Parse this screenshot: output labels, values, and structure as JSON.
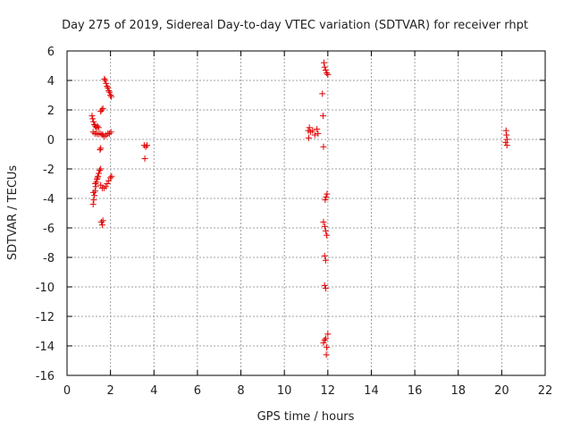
{
  "chart_data": {
    "type": "scatter",
    "title": "Day 275 of 2019, Sidereal Day-to-day VTEC variation (SDTVAR) for receiver rhpt",
    "xlabel": "GPS time / hours",
    "ylabel": "SDTVAR / TECUs",
    "xlim": [
      0,
      22
    ],
    "ylim": [
      -16,
      6
    ],
    "xticks": [
      0,
      2,
      4,
      6,
      8,
      10,
      12,
      14,
      16,
      18,
      20,
      22
    ],
    "yticks": [
      -16,
      -14,
      -12,
      -10,
      -8,
      -6,
      -4,
      -2,
      0,
      2,
      4,
      6
    ],
    "grid": true,
    "marker": "+",
    "color": "#e00000",
    "points": [
      [
        1.2,
        -4.4
      ],
      [
        1.23,
        -4.1
      ],
      [
        1.26,
        -3.8
      ],
      [
        1.29,
        -3.5
      ],
      [
        1.32,
        -3.2
      ],
      [
        1.35,
        -2.9
      ],
      [
        1.38,
        -2.7
      ],
      [
        1.42,
        -2.5
      ],
      [
        1.46,
        -2.3
      ],
      [
        1.5,
        -2.1
      ],
      [
        1.55,
        -2.0
      ],
      [
        1.22,
        -3.6
      ],
      [
        1.3,
        -3.0
      ],
      [
        1.4,
        -2.6
      ],
      [
        1.55,
        -3.1
      ],
      [
        1.62,
        -3.3
      ],
      [
        1.7,
        -3.3
      ],
      [
        1.78,
        -3.2
      ],
      [
        1.85,
        -3.0
      ],
      [
        1.92,
        -2.8
      ],
      [
        2.0,
        -2.6
      ],
      [
        2.05,
        -2.5
      ],
      [
        1.58,
        -5.6
      ],
      [
        1.62,
        -5.8
      ],
      [
        1.65,
        -5.5
      ],
      [
        1.52,
        -0.7
      ],
      [
        1.55,
        -0.6
      ],
      [
        1.15,
        1.6
      ],
      [
        1.18,
        1.4
      ],
      [
        1.22,
        1.2
      ],
      [
        1.26,
        1.0
      ],
      [
        1.3,
        0.9
      ],
      [
        1.35,
        0.8
      ],
      [
        1.4,
        0.9
      ],
      [
        1.45,
        0.8
      ],
      [
        1.2,
        0.5
      ],
      [
        1.28,
        0.4
      ],
      [
        1.36,
        0.4
      ],
      [
        1.44,
        0.35
      ],
      [
        1.52,
        0.4
      ],
      [
        1.6,
        0.35
      ],
      [
        1.65,
        0.3
      ],
      [
        1.72,
        0.2
      ],
      [
        1.8,
        0.3
      ],
      [
        1.88,
        0.4
      ],
      [
        1.95,
        0.4
      ],
      [
        2.02,
        0.5
      ],
      [
        1.55,
        1.9
      ],
      [
        1.6,
        2.0
      ],
      [
        1.65,
        2.1
      ],
      [
        1.72,
        4.1
      ],
      [
        1.76,
        4.0
      ],
      [
        1.8,
        3.8
      ],
      [
        1.84,
        3.6
      ],
      [
        1.88,
        3.5
      ],
      [
        1.92,
        3.3
      ],
      [
        1.96,
        3.2
      ],
      [
        2.0,
        3.0
      ],
      [
        2.04,
        2.9
      ],
      [
        3.55,
        -0.4
      ],
      [
        3.62,
        -0.5
      ],
      [
        3.68,
        -0.4
      ],
      [
        3.58,
        -1.3
      ],
      [
        11.1,
        0.6
      ],
      [
        11.12,
        0.1
      ],
      [
        11.15,
        0.8
      ],
      [
        11.2,
        0.5
      ],
      [
        11.3,
        0.6
      ],
      [
        11.4,
        0.3
      ],
      [
        11.5,
        0.7
      ],
      [
        11.55,
        0.4
      ],
      [
        11.75,
        3.1
      ],
      [
        11.78,
        1.6
      ],
      [
        11.8,
        -0.5
      ],
      [
        11.82,
        5.2
      ],
      [
        11.85,
        4.9
      ],
      [
        11.9,
        4.7
      ],
      [
        11.95,
        4.5
      ],
      [
        12.0,
        4.4
      ],
      [
        11.88,
        -4.1
      ],
      [
        11.92,
        -3.9
      ],
      [
        11.96,
        -3.7
      ],
      [
        11.8,
        -5.6
      ],
      [
        11.86,
        -5.9
      ],
      [
        11.9,
        -6.2
      ],
      [
        11.95,
        -6.5
      ],
      [
        11.85,
        -7.9
      ],
      [
        11.9,
        -8.2
      ],
      [
        11.85,
        -9.9
      ],
      [
        11.9,
        -10.1
      ],
      [
        11.8,
        -13.8
      ],
      [
        11.85,
        -13.6
      ],
      [
        11.9,
        -13.5
      ],
      [
        11.95,
        -14.1
      ],
      [
        12.0,
        -13.2
      ],
      [
        11.93,
        -14.6
      ],
      [
        20.2,
        0.6
      ],
      [
        20.22,
        0.3
      ],
      [
        20.25,
        0.0
      ],
      [
        20.18,
        -0.2
      ],
      [
        20.24,
        -0.4
      ]
    ]
  }
}
